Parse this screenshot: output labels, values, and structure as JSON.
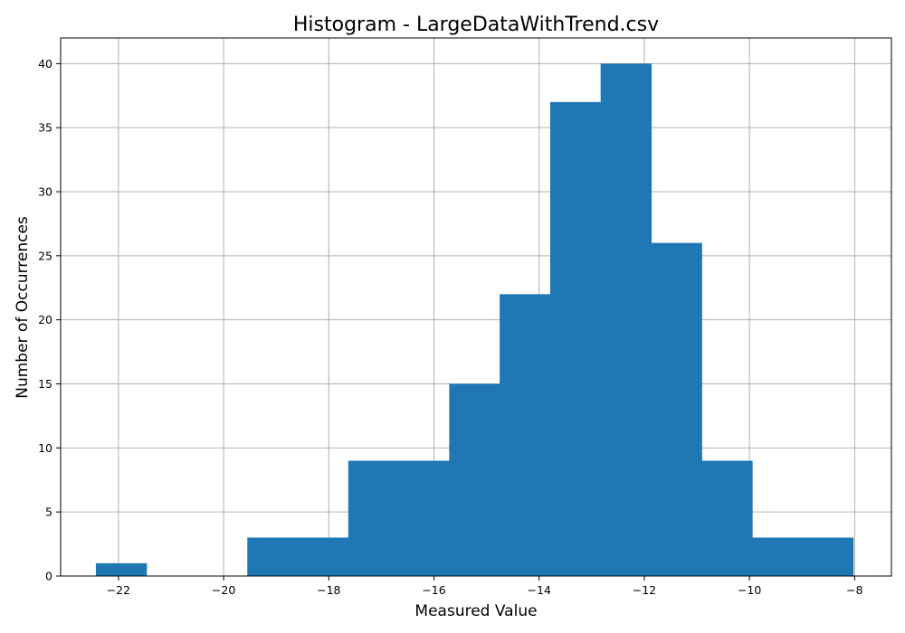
{
  "chart_data": {
    "type": "bar",
    "title": "Histogram - LargeDataWithTrend.csv",
    "xlabel": "Measured Value",
    "ylabel": "Number of Occurrences",
    "bin_edges": [
      -22.43,
      -21.47,
      -20.51,
      -19.55,
      -18.59,
      -17.63,
      -16.67,
      -15.71,
      -14.75,
      -13.79,
      -12.83,
      -11.87,
      -10.91,
      -9.95,
      -8.99,
      -8.03
    ],
    "values": [
      1,
      0,
      0,
      3,
      3,
      9,
      9,
      15,
      22,
      37,
      40,
      26,
      9,
      3,
      3
    ],
    "xlim": [
      -23.1,
      -7.3
    ],
    "ylim": [
      0,
      42
    ],
    "xticks": [
      -22,
      -20,
      -18,
      -16,
      -14,
      -12,
      -10,
      -8
    ],
    "xtick_labels": [
      "−22",
      "−20",
      "−18",
      "−16",
      "−14",
      "−12",
      "−10",
      "−8"
    ],
    "yticks": [
      0,
      5,
      10,
      15,
      20,
      25,
      30,
      35,
      40
    ],
    "ytick_labels": [
      "0",
      "5",
      "10",
      "15",
      "20",
      "25",
      "30",
      "35",
      "40"
    ],
    "grid": true,
    "bar_color": "#1f77b4"
  }
}
